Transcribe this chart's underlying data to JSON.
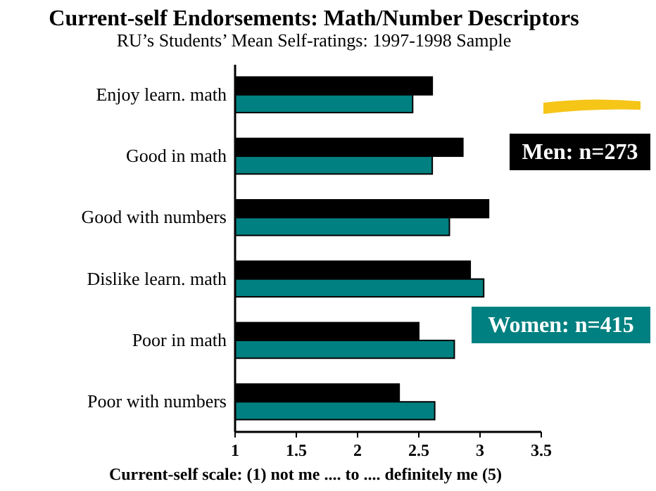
{
  "chart_data": {
    "type": "bar",
    "orientation": "horizontal",
    "title": "Current-self Endorsements: Math/Number Descriptors",
    "subtitle": "RU’s Students’ Mean Self-ratings:  1997-1998 Sample",
    "xlabel": "Current-self scale: (1) not me .... to .... definitely me (5)",
    "categories": [
      "Enjoy learn. math",
      "Good in math",
      "Good with numbers",
      "Dislike learn. math",
      "Poor in math",
      "Poor with numbers"
    ],
    "series": [
      {
        "name": "Men: n=273",
        "color": "#000000",
        "values": [
          2.61,
          2.86,
          3.07,
          2.92,
          2.5,
          2.34
        ]
      },
      {
        "name": "Women: n=415",
        "color": "#008080",
        "values": [
          2.45,
          2.61,
          2.75,
          3.03,
          2.79,
          2.63
        ]
      }
    ],
    "xlim": [
      1,
      3.5
    ],
    "xticks": [
      1,
      1.5,
      2,
      2.5,
      3,
      3.5
    ],
    "grid": false,
    "legend": "right"
  }
}
